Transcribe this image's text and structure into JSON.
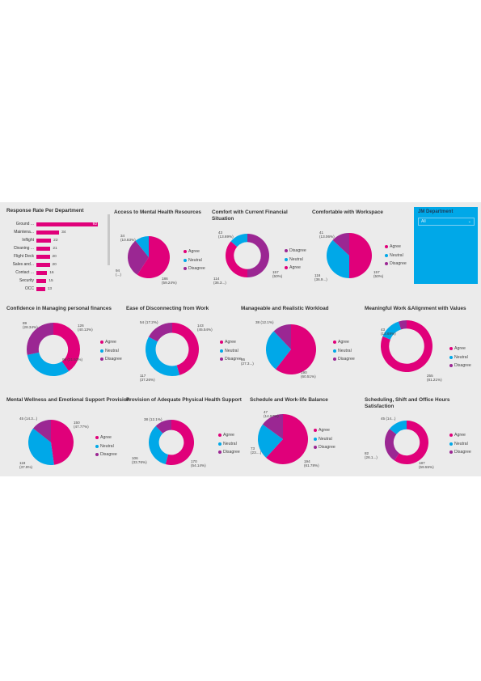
{
  "colors": {
    "agree": "#e0007a",
    "neutral": "#00a8e8",
    "disagree": "#9b2793",
    "bar": "#e0007a"
  },
  "response_rate": {
    "title": "Response Rate Per Department",
    "bars": [
      {
        "name": "Ground ...",
        "value": 92
      },
      {
        "name": "Maintena...",
        "value": 34
      },
      {
        "name": "Inflight",
        "value": 22
      },
      {
        "name": "Cleaning ...",
        "value": 21
      },
      {
        "name": "Flight Deck",
        "value": 20
      },
      {
        "name": "Sales and...",
        "value": 20
      },
      {
        "name": "Contact ...",
        "value": 16
      },
      {
        "name": "Security",
        "value": 15
      },
      {
        "name": "OCC",
        "value": 13
      }
    ]
  },
  "slicer": {
    "title": "JM Department",
    "value": "All",
    "chevron": "chevron-down-icon"
  },
  "charts": [
    {
      "title": "Access to Mental Health Resources",
      "legend": [
        "Agree",
        "Neutral",
        "Disagree"
      ],
      "slices": [
        {
          "cat": "Agree",
          "value": 186
        },
        {
          "cat": "Disagree",
          "value": 94
        },
        {
          "cat": "Neutral",
          "value": 34
        }
      ],
      "labels": {
        "Agree": "186\n(59.24%)",
        "Disagree": "94\n(...)",
        "Neutral": "34\n(10.83%)"
      }
    },
    {
      "title": "Comfort with Current Financial Situation",
      "legend": [
        "Disagree",
        "Neutral",
        "Agree"
      ],
      "slices": [
        {
          "cat": "Disagree",
          "value": 157
        },
        {
          "cat": "Agree",
          "value": 114
        },
        {
          "cat": "Neutral",
          "value": 43
        }
      ],
      "labels": {
        "Disagree": "157\n(50%)",
        "Agree": "114\n(36.3...)",
        "Neutral": "43\n(13.69%)"
      }
    },
    {
      "title": "Comfortable with Workspace",
      "legend": [
        "Agree",
        "Neutral",
        "Disagree"
      ],
      "slices": [
        {
          "cat": "Agree",
          "value": 157
        },
        {
          "cat": "Neutral",
          "value": 116
        },
        {
          "cat": "Disagree",
          "value": 41
        }
      ],
      "labels": {
        "Agree": "157\n(50%)",
        "Neutral": "116\n(36.9...)",
        "Disagree": "41\n(13.06%)"
      }
    },
    {
      "title": "Confidence in Managing personal finances",
      "legend": [
        "Agree",
        "Neutral",
        "Disagree"
      ],
      "slices": [
        {
          "cat": "Agree",
          "value": 126
        },
        {
          "cat": "Neutral",
          "value": 99
        },
        {
          "cat": "Disagree",
          "value": 89
        }
      ],
      "labels": {
        "Agree": "126\n(40.13%)",
        "Neutral": "99 (31.53%)",
        "Disagree": "89\n(28.34%)"
      }
    },
    {
      "title": "Ease of Disconnecting from Work",
      "legend": [
        "Agree",
        "Neutral",
        "Disagree"
      ],
      "slices": [
        {
          "cat": "Agree",
          "value": 143
        },
        {
          "cat": "Neutral",
          "value": 117
        },
        {
          "cat": "Disagree",
          "value": 54
        }
      ],
      "labels": {
        "Agree": "143\n(45.54%)",
        "Neutral": "117\n(37.26%)",
        "Disagree": "54 (17.2%)"
      }
    },
    {
      "title": "Manageable and Realistic Workload",
      "legend": [
        "Agree",
        "Neutral",
        "Disagree"
      ],
      "slices": [
        {
          "cat": "Agree",
          "value": 190
        },
        {
          "cat": "Neutral",
          "value": 86
        },
        {
          "cat": "Disagree",
          "value": 38
        }
      ],
      "labels": {
        "Agree": "190\n(60.51%)",
        "Neutral": "86\n(27.3...)",
        "Disagree": "38 (12.1%)"
      }
    },
    {
      "title": "Meaningful Work &Alignment with Values",
      "legend": [
        "Agree",
        "Neutral",
        "Disagree"
      ],
      "slices": [
        {
          "cat": "Agree",
          "value": 255
        },
        {
          "cat": "Neutral",
          "value": 43
        },
        {
          "cat": "Disagree",
          "value": 16
        }
      ],
      "labels": {
        "Agree": "255\n(81.21%)",
        "Neutral": "43\n(13.69%)"
      }
    },
    {
      "title": "Mental Wellness and Emotional Support Provision",
      "legend": [
        "Agree",
        "Neutral",
        "Disagree"
      ],
      "slices": [
        {
          "cat": "Agree",
          "value": 150
        },
        {
          "cat": "Neutral",
          "value": 119
        },
        {
          "cat": "Disagree",
          "value": 45
        }
      ],
      "labels": {
        "Agree": "150\n(47.77%)",
        "Neutral": "119\n(37.9%)",
        "Disagree": "45 (14.3...)"
      }
    },
    {
      "title": "Provision of Adequate Physical Health Support",
      "legend": [
        "Agree",
        "Neutral",
        "Disagree"
      ],
      "slices": [
        {
          "cat": "Agree",
          "value": 170
        },
        {
          "cat": "Neutral",
          "value": 106
        },
        {
          "cat": "Disagree",
          "value": 38
        }
      ],
      "labels": {
        "Agree": "170\n(54.14%)",
        "Neutral": "106\n(33.76%)",
        "Disagree": "38 (12.1%)"
      }
    },
    {
      "title": "Schedule and Work-life Balance",
      "legend": [
        "Agree",
        "Neutral",
        "Disagree"
      ],
      "slices": [
        {
          "cat": "Agree",
          "value": 194
        },
        {
          "cat": "Neutral",
          "value": 73
        },
        {
          "cat": "Disagree",
          "value": 47
        }
      ],
      "labels": {
        "Agree": "194\n(61.78%)",
        "Neutral": "73\n(23....)",
        "Disagree": "47\n(14.97%)"
      }
    },
    {
      "title": "Scheduling, Shift and Office Hours Satisfaction",
      "legend": [
        "Agree",
        "Neutral",
        "Disagree"
      ],
      "slices": [
        {
          "cat": "Agree",
          "value": 187
        },
        {
          "cat": "Disagree",
          "value": 82
        },
        {
          "cat": "Neutral",
          "value": 45
        }
      ],
      "labels": {
        "Agree": "187\n(59.55%)",
        "Disagree": "82\n(26.1...)",
        "Neutral": "45 (14...)"
      }
    }
  ]
}
